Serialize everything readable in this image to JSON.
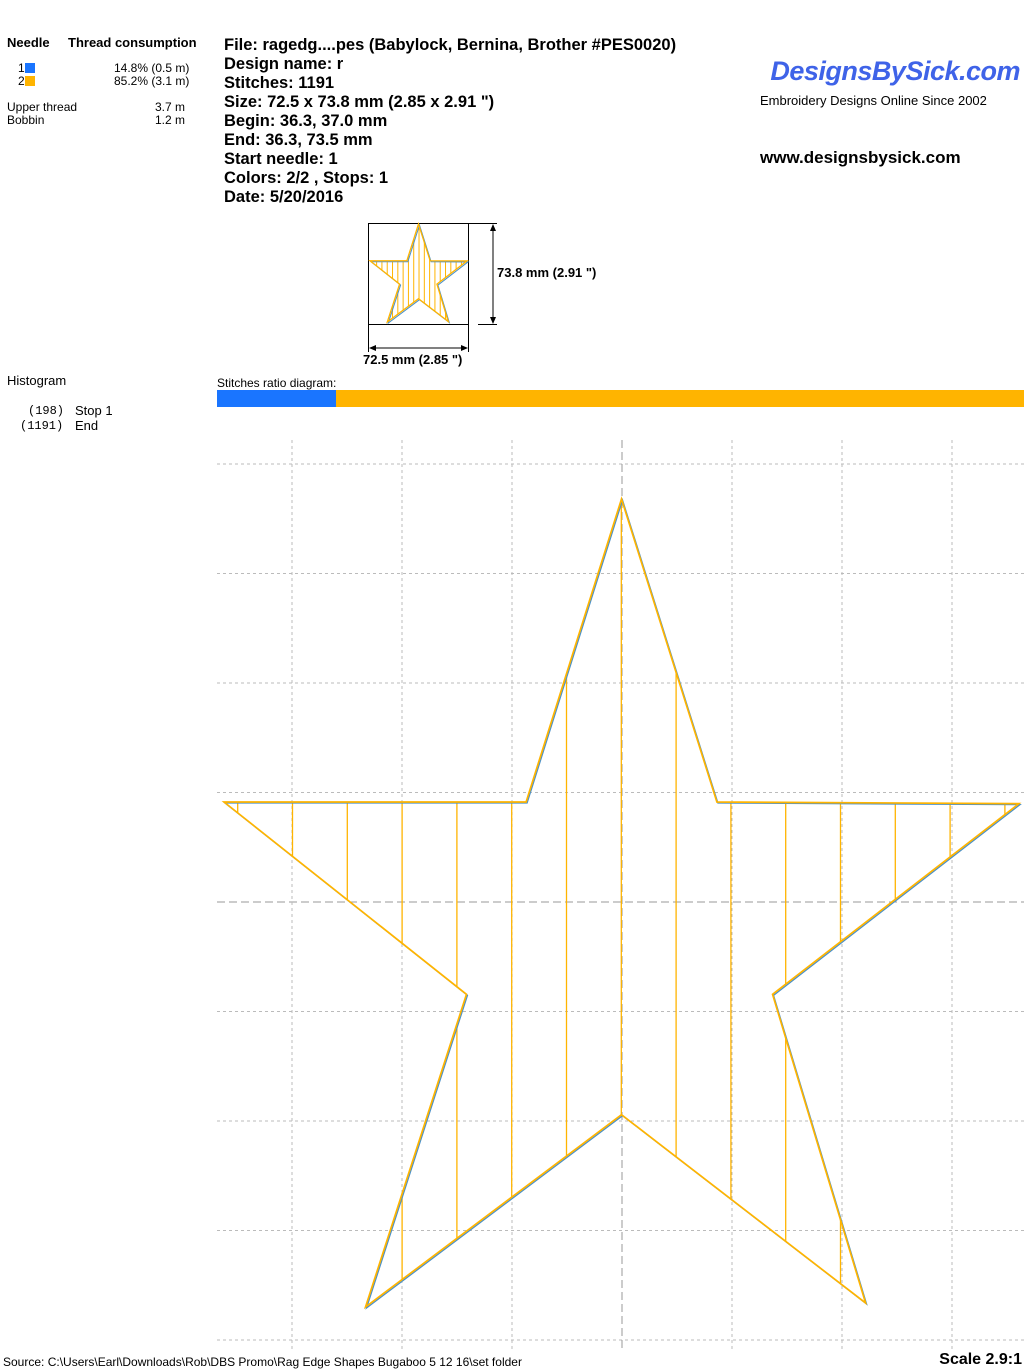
{
  "legend": {
    "needle_header": "Needle",
    "consumption_header": "Thread consumption",
    "needles": [
      {
        "num": "1",
        "color": "#1a75ff",
        "value": "14.8% (0.5 m)"
      },
      {
        "num": "2",
        "color": "#ffb400",
        "value": "85.2% (3.1 m)"
      }
    ],
    "upper_label": "Upper thread",
    "upper_value": "3.7 m",
    "bobbin_label": "Bobbin",
    "bobbin_value": "1.2 m"
  },
  "info": {
    "file": "File: ragedg....pes  (Babylock, Bernina, Brother #PES0020)",
    "design": "Design name: r",
    "stitches": "Stitches: 1191",
    "size": "Size: 72.5 x 73.8 mm (2.85 x 2.91 \")",
    "begin": "Begin: 36.3, 37.0 mm",
    "end": "End: 36.3, 73.5 mm",
    "start_needle": "Start needle: 1",
    "colors": "Colors: 2/2 , Stops: 1",
    "date": "Date: 5/20/2016"
  },
  "brand": {
    "logo": "DesignsBySick.com",
    "tagline": "Embroidery Designs Online Since 2002",
    "url": "www.designsbysick.com",
    "logo_color": "#3f63e8"
  },
  "thumbnail": {
    "height_label": "73.8 mm (2.91 \")",
    "width_label": "72.5 mm (2.85 \")"
  },
  "histogram": {
    "title": "Histogram",
    "entries": [
      {
        "count": "(198)",
        "label": "Stop 1"
      },
      {
        "count": "(1191)",
        "label": "End"
      }
    ]
  },
  "ratio": {
    "label": "Stitches ratio diagram:",
    "first_fraction": 0.148
  },
  "footer": {
    "source": "Source: C:\\Users\\Earl\\Downloads\\Rob\\DBS Promo\\Rag Edge Shapes  Bugaboo 5 12 16\\set folder",
    "scale": "Scale 2.9:1"
  }
}
